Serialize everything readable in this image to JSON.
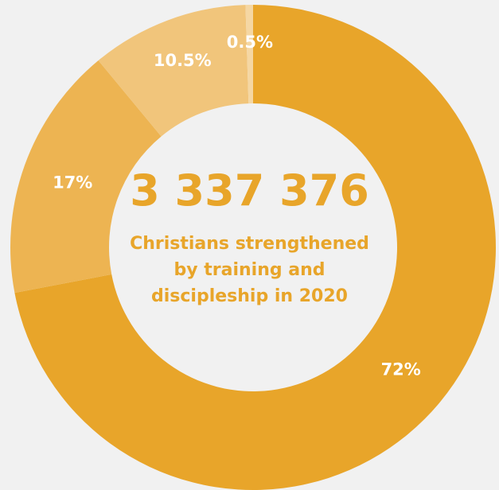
{
  "chart_data": {
    "type": "pie",
    "variant": "donut",
    "categories": [
      "",
      "",
      "",
      ""
    ],
    "values": [
      72,
      17,
      10.5,
      0.5
    ],
    "data_labels": [
      "72%",
      "17%",
      "10.5%",
      "0.5%"
    ],
    "colors": [
      "#e8a52a",
      "#edb452",
      "#f1c57b",
      "#f5d7a3"
    ],
    "start": "top",
    "direction": "clockwise",
    "legend": "none"
  },
  "center": {
    "number": "3 337 376",
    "caption_lines": [
      "Christians strengthened",
      "by training and",
      "discipleship in 2020"
    ]
  },
  "colors": {
    "background": "#f1f1f1",
    "accent": "#e8a52a"
  }
}
